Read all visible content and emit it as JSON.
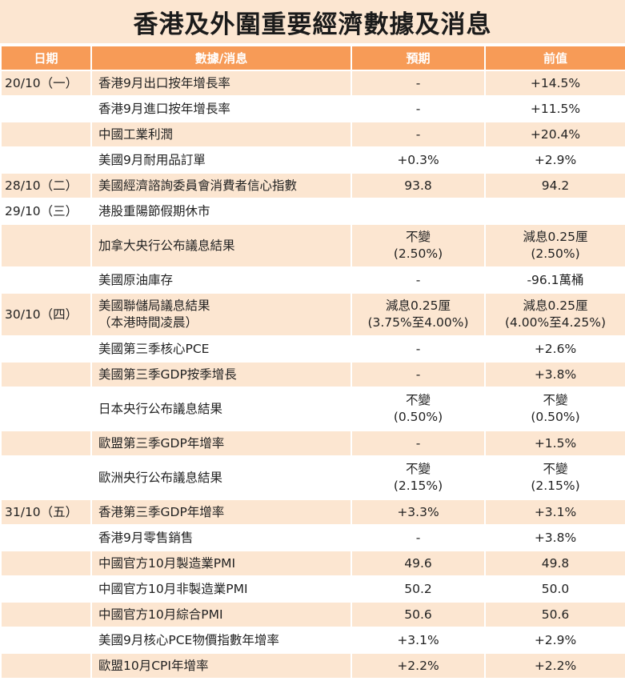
{
  "title": "香港及外圍重要經濟數據及消息",
  "headers": [
    "日期",
    "數據/消息",
    "預期",
    "前值"
  ],
  "colors": {
    "header_bg": "#f79b57",
    "stripe_bg": "#fce6d1"
  },
  "rows": [
    {
      "date": "20/10（一）",
      "item": "香港9月出口按年增長率",
      "expected": "-",
      "previous": "+14.5%"
    },
    {
      "date": "",
      "item": "香港9月進口按年增長率",
      "expected": "-",
      "previous": "+11.5%"
    },
    {
      "date": "",
      "item": "中國工業利潤",
      "expected": "-",
      "previous": "+20.4%"
    },
    {
      "date": "",
      "item": "美國9月耐用品訂單",
      "expected": "+0.3%",
      "previous": "+2.9%"
    },
    {
      "date": "28/10（二）",
      "item": "美國經濟諮詢委員會消費者信心指數",
      "expected": "93.8",
      "previous": "94.2"
    },
    {
      "date": "29/10（三）",
      "item": "港股重陽節假期休市",
      "expected": "",
      "previous": ""
    },
    {
      "date": "",
      "item": "加拿大央行公布議息結果",
      "expected": "不變\n(2.50%)",
      "previous": "減息0.25厘\n(2.50%)"
    },
    {
      "date": "",
      "item": "美國原油庫存",
      "expected": "-",
      "previous": "-96.1萬桶"
    },
    {
      "date": "30/10（四）",
      "item": "美國聯儲局議息結果\n（本港時間凌晨）",
      "expected": "減息0.25厘\n(3.75%至4.00%)",
      "previous": "減息0.25厘\n(4.00%至4.25%)"
    },
    {
      "date": "",
      "item": "美國第三季核心PCE",
      "expected": "-",
      "previous": "+2.6%"
    },
    {
      "date": "",
      "item": "美國第三季GDP按季增長",
      "expected": "-",
      "previous": "+3.8%"
    },
    {
      "date": "",
      "item": "日本央行公布議息結果",
      "expected": "不變\n(0.50%)",
      "previous": "不變\n(0.50%)"
    },
    {
      "date": "",
      "item": "歐盟第三季GDP年增率",
      "expected": "-",
      "previous": "+1.5%"
    },
    {
      "date": "",
      "item": "歐洲央行公布議息結果",
      "expected": "不變\n(2.15%)",
      "previous": "不變\n(2.15%)"
    },
    {
      "date": "31/10（五）",
      "item": "香港第三季GDP年增率",
      "expected": "+3.3%",
      "previous": "+3.1%"
    },
    {
      "date": "",
      "item": "香港9月零售銷售",
      "expected": "-",
      "previous": "+3.8%"
    },
    {
      "date": "",
      "item": "中國官方10月製造業PMI",
      "expected": "49.6",
      "previous": "49.8"
    },
    {
      "date": "",
      "item": "中國官方10月非製造業PMI",
      "expected": "50.2",
      "previous": "50.0"
    },
    {
      "date": "",
      "item": "中國官方10月綜合PMI",
      "expected": "50.6",
      "previous": "50.6"
    },
    {
      "date": "",
      "item": "美國9月核心PCE物價指數年增率",
      "expected": "+3.1%",
      "previous": "+2.9%"
    },
    {
      "date": "",
      "item": "歐盟10月CPI年增率",
      "expected": "+2.2%",
      "previous": "+2.2%"
    }
  ]
}
